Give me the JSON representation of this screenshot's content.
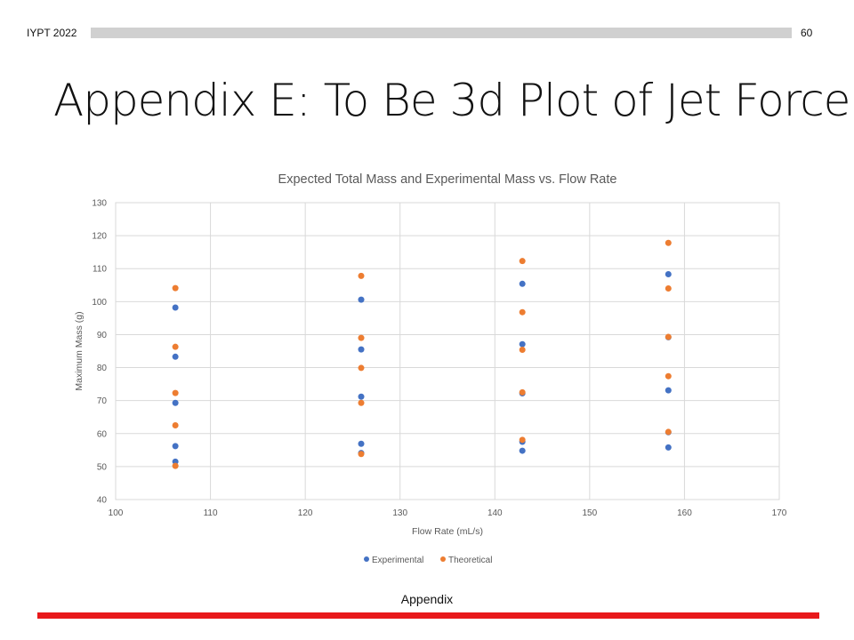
{
  "header": {
    "left": "IYPT 2022",
    "page_number": "60"
  },
  "title": "Appendix E: To Be 3d Plot of Jet Force",
  "footer": {
    "label": "Appendix"
  },
  "colors": {
    "experimental": "#4472c4",
    "theoretical": "#ed7d31",
    "grid": "#d9d9d9",
    "accent": "#e8191b"
  },
  "chart_data": {
    "type": "scatter",
    "title": "Expected Total Mass and Experimental Mass vs. Flow Rate",
    "xlabel": "Flow Rate (mL/s)",
    "ylabel": "Maximum Mass (g)",
    "xlim": [
      100,
      170
    ],
    "ylim": [
      40,
      130
    ],
    "xticks": [
      100,
      110,
      120,
      130,
      140,
      150,
      160,
      170
    ],
    "yticks": [
      40,
      50,
      60,
      70,
      80,
      90,
      100,
      110,
      120,
      130
    ],
    "grid": true,
    "legend": "bottom-center",
    "series": [
      {
        "name": "Experimental",
        "color": "#4472c4",
        "points": [
          [
            106.3,
            98.2
          ],
          [
            106.3,
            83.3
          ],
          [
            106.3,
            69.3
          ],
          [
            106.3,
            56.2
          ],
          [
            106.3,
            51.5
          ],
          [
            125.9,
            100.6
          ],
          [
            125.9,
            85.5
          ],
          [
            125.9,
            71.2
          ],
          [
            125.9,
            56.9
          ],
          [
            125.9,
            54.1
          ],
          [
            142.9,
            105.4
          ],
          [
            142.9,
            87.1
          ],
          [
            142.9,
            72.2
          ],
          [
            142.9,
            57.5
          ],
          [
            142.9,
            54.8
          ],
          [
            158.3,
            108.3
          ],
          [
            158.3,
            89.2
          ],
          [
            158.3,
            73.1
          ],
          [
            158.3,
            60.4
          ],
          [
            158.3,
            55.8
          ]
        ]
      },
      {
        "name": "Theoretical",
        "color": "#ed7d31",
        "points": [
          [
            106.3,
            104.1
          ],
          [
            106.3,
            86.3
          ],
          [
            106.3,
            72.3
          ],
          [
            106.3,
            62.5
          ],
          [
            106.3,
            50.2
          ],
          [
            125.9,
            107.8
          ],
          [
            125.9,
            89.0
          ],
          [
            125.9,
            79.9
          ],
          [
            125.9,
            69.3
          ],
          [
            125.9,
            53.8
          ],
          [
            142.9,
            112.3
          ],
          [
            142.9,
            96.8
          ],
          [
            142.9,
            85.4
          ],
          [
            142.9,
            72.5
          ],
          [
            142.9,
            58.1
          ],
          [
            158.3,
            117.8
          ],
          [
            158.3,
            104.0
          ],
          [
            158.3,
            89.3
          ],
          [
            158.3,
            77.4
          ],
          [
            158.3,
            60.5
          ]
        ]
      }
    ]
  }
}
